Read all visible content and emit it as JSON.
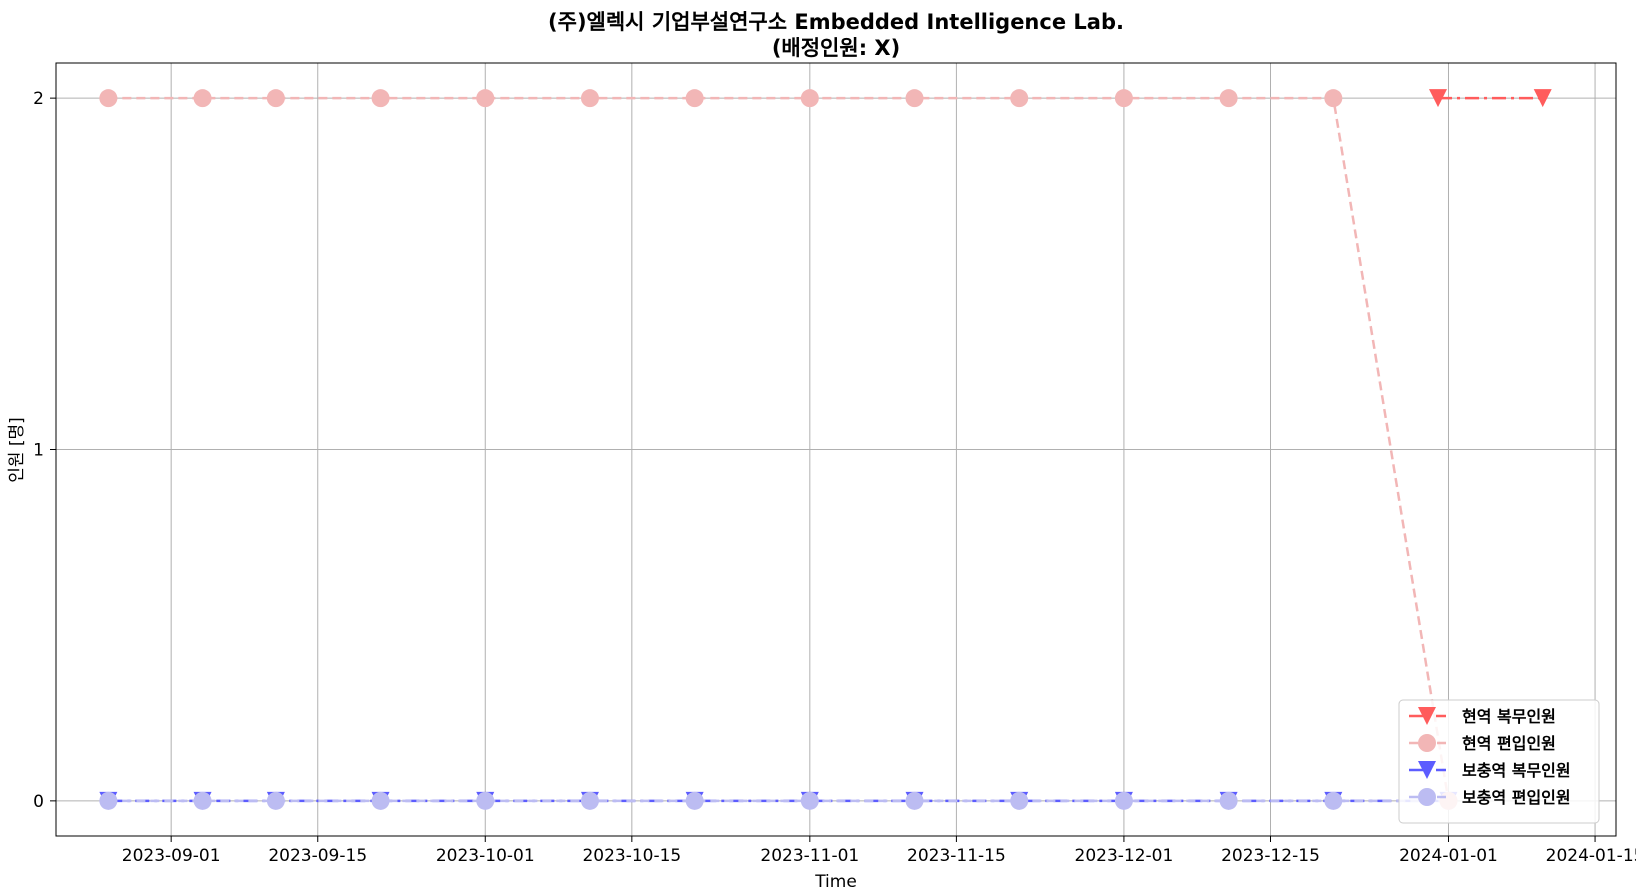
{
  "chart_data": {
    "type": "line",
    "title_line1": "(주)엘렉시  기업부설연구소  Embedded  Intelligence  Lab.",
    "title_line2": "(배정인원:  X)",
    "xlabel": "Time",
    "ylabel": "인원 [명]",
    "x_tick_labels": [
      "2023-09-01",
      "2023-09-15",
      "2023-10-01",
      "2023-10-15",
      "2023-11-01",
      "2023-11-15",
      "2023-12-01",
      "2023-12-15",
      "2024-01-01",
      "2024-01-15"
    ],
    "y_tick_labels": [
      "0",
      "1",
      "2"
    ],
    "ylim": [
      -0.1,
      2.1
    ],
    "xlim": [
      "2023-08-21",
      "2024-01-17"
    ],
    "grid": true,
    "legend_position": "lower-right",
    "series": [
      {
        "name": "현역  복무인원",
        "color": "#ff5c5c",
        "marker": "triangle-down",
        "linestyle": "dashdot",
        "dates": [
          "2023-12-31",
          "2024-01-10"
        ],
        "values": [
          2,
          2
        ]
      },
      {
        "name": "현역  편입인원",
        "color": "#f2b6b6",
        "marker": "circle",
        "linestyle": "dashed",
        "dates": [
          "2023-08-26",
          "2023-09-04",
          "2023-09-11",
          "2023-09-21",
          "2023-10-01",
          "2023-10-11",
          "2023-10-21",
          "2023-11-01",
          "2023-11-11",
          "2023-11-21",
          "2023-12-01",
          "2023-12-11",
          "2023-12-21",
          "2024-01-01"
        ],
        "values": [
          2,
          2,
          2,
          2,
          2,
          2,
          2,
          2,
          2,
          2,
          2,
          2,
          2,
          0
        ]
      },
      {
        "name": "보충역  복무인원",
        "color": "#5c5cff",
        "marker": "triangle-down",
        "linestyle": "dashdot",
        "dates": [
          "2023-08-26",
          "2023-09-04",
          "2023-09-11",
          "2023-09-21",
          "2023-10-01",
          "2023-10-11",
          "2023-10-21",
          "2023-11-01",
          "2023-11-11",
          "2023-11-21",
          "2023-12-01",
          "2023-12-11",
          "2023-12-21",
          "2024-01-01"
        ],
        "values": [
          0,
          0,
          0,
          0,
          0,
          0,
          0,
          0,
          0,
          0,
          0,
          0,
          0,
          0
        ]
      },
      {
        "name": "보충역  편입인원",
        "color": "#bcbcf2",
        "marker": "circle",
        "linestyle": "dashed",
        "dates": [
          "2023-08-26",
          "2023-09-04",
          "2023-09-11",
          "2023-09-21",
          "2023-10-01",
          "2023-10-11",
          "2023-10-21",
          "2023-11-01",
          "2023-11-11",
          "2023-11-21",
          "2023-12-01",
          "2023-12-11",
          "2023-12-21",
          "2024-01-01"
        ],
        "values": [
          0,
          0,
          0,
          0,
          0,
          0,
          0,
          0,
          0,
          0,
          0,
          0,
          0,
          0
        ]
      }
    ]
  }
}
